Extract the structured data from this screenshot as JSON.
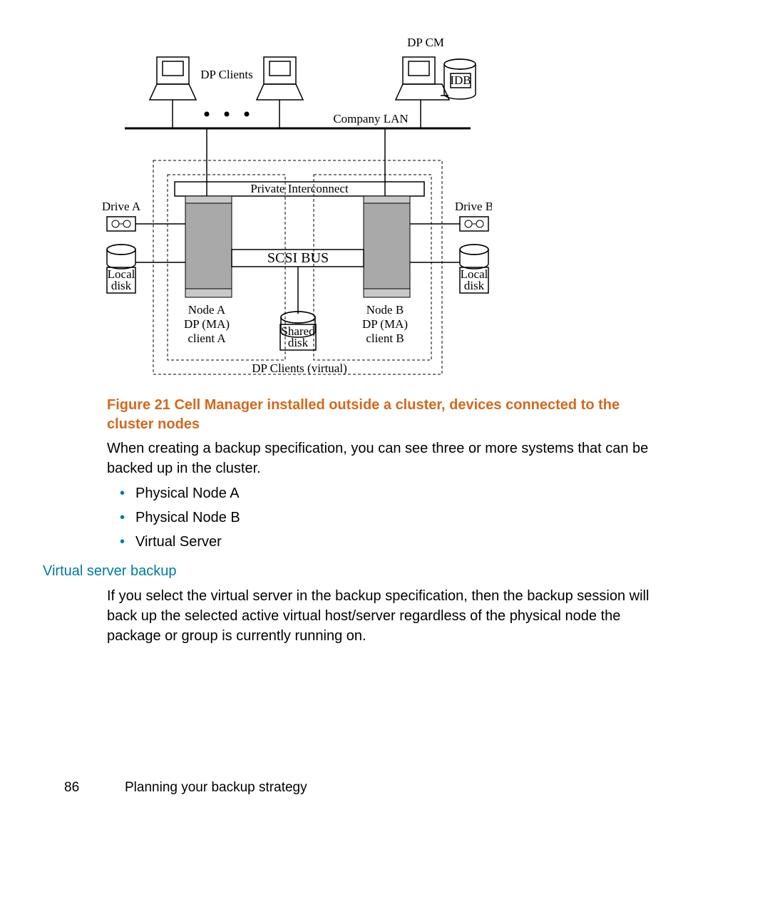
{
  "figure": {
    "caption_prefix": "Figure 21",
    "caption_text": "Cell Manager installed outside a cluster, devices connected to the cluster nodes",
    "caption_color": "#d2691e",
    "labels": {
      "dp_cm": "DP CM",
      "dp_clients": "DP Clients",
      "idb": "IDB",
      "company_lan": "Company LAN",
      "private_interconnect": "Private Interconnect",
      "drive_a": "Drive A",
      "drive_b": "Drive B",
      "scsi_bus": "SCSI BUS",
      "local_disk_a": "Local\ndisk",
      "local_disk_b": "Local\ndisk",
      "node_a": "Node A",
      "node_b": "Node B",
      "dp_ma_a": "DP (MA)\nclient A",
      "dp_ma_b": "DP (MA)\nclient B",
      "shared_disk": "Shared\ndisk",
      "dp_clients_virtual": "DP Clients (virtual)"
    },
    "styling": {
      "server_fill": "#a9a9a9",
      "server_top_fill": "#c0c0c0",
      "outline": "#000000",
      "dash_pattern": "4,3",
      "font_family": "serif",
      "label_font_size": 17,
      "bus_font_size": 20
    }
  },
  "body": {
    "para1": "When creating a backup specification, you can see three or more systems that can be backed up in the cluster.",
    "bullets": [
      "Physical Node A",
      "Physical Node B",
      "Virtual Server"
    ],
    "bullet_color": "#007a9e",
    "subhead": "Virtual server backup",
    "subhead_color": "#007a9e",
    "para2": "If you select the virtual server in the backup specification, then the backup session will back up the selected active virtual host/server regardless of the physical node the package or group is currently running on."
  },
  "footer": {
    "page_number": "86",
    "section": "Planning your backup strategy"
  }
}
